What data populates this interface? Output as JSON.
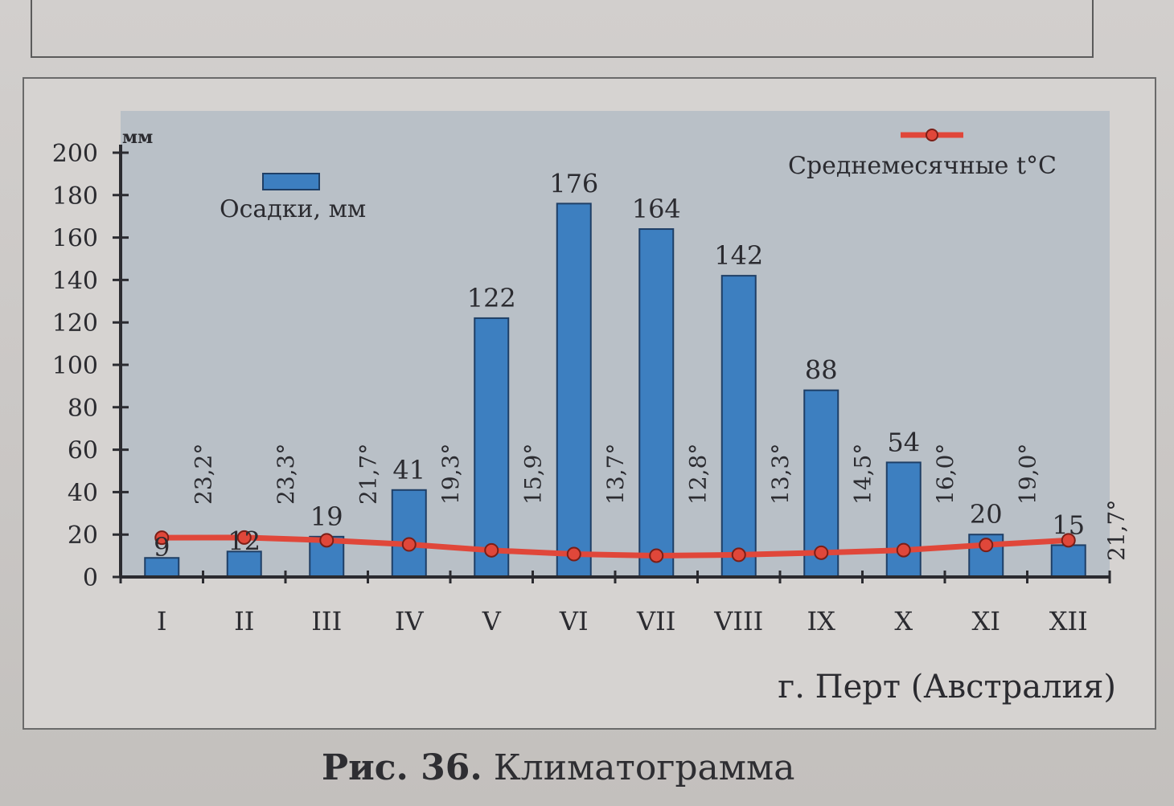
{
  "caption": {
    "number": "Рис. 36.",
    "text": "Климатограмма"
  },
  "chart_data": {
    "type": "bar",
    "title": "г. Перт (Австралия)",
    "y_unit": "мм",
    "ylim": [
      0,
      200
    ],
    "y_ticks": [
      "0",
      "20",
      "40",
      "60",
      "80",
      "100",
      "120",
      "140",
      "160",
      "180",
      "200"
    ],
    "categories": [
      "I",
      "II",
      "III",
      "IV",
      "V",
      "VI",
      "VII",
      "VIII",
      "IX",
      "X",
      "XI",
      "XII"
    ],
    "series": [
      {
        "name": "Осадки, мм",
        "kind": "bar",
        "color": "#3d7fc0",
        "values": [
          9,
          12,
          19,
          41,
          122,
          176,
          164,
          142,
          88,
          54,
          20,
          15
        ],
        "labels": [
          "9",
          "12",
          "19",
          "41",
          "122",
          "176",
          "164",
          "142",
          "88",
          "54",
          "20",
          "15"
        ]
      },
      {
        "name": "Среднемесячные t°C",
        "kind": "line",
        "color": "#e0473a",
        "values": [
          23.2,
          23.3,
          21.7,
          19.3,
          15.9,
          13.7,
          12.8,
          13.3,
          14.5,
          16.0,
          19.0,
          21.7
        ],
        "labels": [
          "23,2°",
          "23,3°",
          "21,7°",
          "19,3°",
          "15,9°",
          "13,7°",
          "12,8°",
          "13,3°",
          "14,5°",
          "16,0°",
          "19,0°",
          "21,7°"
        ]
      }
    ],
    "grid": false,
    "legend_position": "top"
  }
}
